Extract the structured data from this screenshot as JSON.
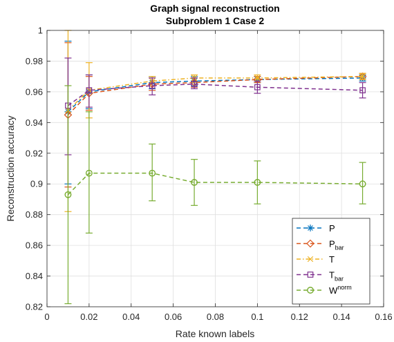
{
  "chart_data": {
    "type": "line",
    "title": "Graph signal reconstruction",
    "subtitle": "Subproblem 1 Case 2",
    "xlabel": "Rate known labels",
    "ylabel": "Reconstruction accuracy",
    "xlim": [
      0,
      0.16
    ],
    "ylim": [
      0.82,
      1.0
    ],
    "grid": true,
    "legend_position": "bottom-right",
    "x_ticks": [
      "0",
      "0.02",
      "0.04",
      "0.06",
      "0.08",
      "0.1",
      "0.12",
      "0.14",
      "0.16"
    ],
    "y_ticks": [
      "0.82",
      "0.84",
      "0.86",
      "0.88",
      "0.9",
      "0.92",
      "0.94",
      "0.96",
      "0.98",
      "1"
    ],
    "x": [
      0.01,
      0.02,
      0.05,
      0.07,
      0.1,
      0.15
    ],
    "series": [
      {
        "name": "P",
        "sub": "",
        "sup": "",
        "color": "#0072bd",
        "dash": "dashed",
        "marker": "asterisk",
        "values": [
          0.947,
          0.96,
          0.966,
          0.967,
          0.968,
          0.969
        ],
        "err_low": [
          0.9,
          0.949,
          0.962,
          0.964,
          0.966,
          0.967
        ],
        "err_high": [
          0.993,
          0.971,
          0.97,
          0.97,
          0.97,
          0.971
        ]
      },
      {
        "name": "P",
        "sub": "bar",
        "sup": "",
        "color": "#d95319",
        "dash": "dashed",
        "marker": "diamond",
        "values": [
          0.945,
          0.959,
          0.965,
          0.966,
          0.968,
          0.97
        ],
        "err_low": [
          0.898,
          0.948,
          0.961,
          0.963,
          0.966,
          0.968
        ],
        "err_high": [
          0.992,
          0.97,
          0.969,
          0.969,
          0.97,
          0.972
        ]
      },
      {
        "name": "T",
        "sub": "",
        "sup": "",
        "color": "#edb120",
        "dash": "dashdot",
        "marker": "x",
        "values": [
          0.948,
          0.961,
          0.967,
          0.969,
          0.969,
          0.97
        ],
        "err_low": [
          0.882,
          0.943,
          0.964,
          0.966,
          0.967,
          0.968
        ],
        "err_high": [
          1.0,
          0.979,
          0.97,
          0.971,
          0.971,
          0.972
        ]
      },
      {
        "name": "T",
        "sub": "bar",
        "sup": "",
        "color": "#7e2f8e",
        "dash": "dashed",
        "marker": "square",
        "values": [
          0.951,
          0.961,
          0.964,
          0.965,
          0.963,
          0.961
        ],
        "err_low": [
          0.919,
          0.95,
          0.958,
          0.962,
          0.959,
          0.956
        ],
        "err_high": [
          0.982,
          0.971,
          0.969,
          0.969,
          0.967,
          0.966
        ]
      },
      {
        "name": "W",
        "sub": "",
        "sup": "norm",
        "color": "#77ac30",
        "dash": "dashed",
        "marker": "circle",
        "values": [
          0.893,
          0.907,
          0.907,
          0.901,
          0.901,
          0.9
        ],
        "err_low": [
          0.822,
          0.868,
          0.889,
          0.886,
          0.887,
          0.887
        ],
        "err_high": [
          0.964,
          0.947,
          0.926,
          0.916,
          0.915,
          0.914
        ]
      }
    ]
  }
}
